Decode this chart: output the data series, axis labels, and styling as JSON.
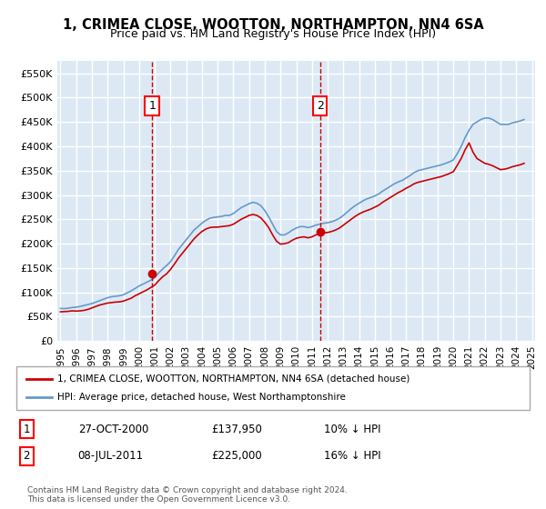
{
  "title": "1, CRIMEA CLOSE, WOOTTON, NORTHAMPTON, NN4 6SA",
  "subtitle": "Price paid vs. HM Land Registry's House Price Index (HPI)",
  "xlabel": "",
  "ylabel": "",
  "ylim": [
    0,
    575000
  ],
  "yticks": [
    0,
    50000,
    100000,
    150000,
    200000,
    250000,
    300000,
    350000,
    400000,
    450000,
    500000,
    550000
  ],
  "ytick_labels": [
    "£0",
    "£50K",
    "£100K",
    "£150K",
    "£200K",
    "£250K",
    "£300K",
    "£350K",
    "£400K",
    "£450K",
    "£500K",
    "£550K"
  ],
  "bg_color": "#dce9f5",
  "plot_bg": "#dce9f5",
  "grid_color": "#ffffff",
  "marker1_x": 2000.83,
  "marker1_y": 137950,
  "marker2_x": 2011.52,
  "marker2_y": 225000,
  "marker1_label": "1",
  "marker2_label": "2",
  "marker1_date": "27-OCT-2000",
  "marker1_price": "£137,950",
  "marker1_hpi": "10% ↓ HPI",
  "marker2_date": "08-JUL-2011",
  "marker2_price": "£225,000",
  "marker2_hpi": "16% ↓ HPI",
  "legend_label1": "1, CRIMEA CLOSE, WOOTTON, NORTHAMPTON, NN4 6SA (detached house)",
  "legend_label2": "HPI: Average price, detached house, West Northamptonshire",
  "footer": "Contains HM Land Registry data © Crown copyright and database right 2024.\nThis data is licensed under the Open Government Licence v3.0.",
  "red_line_color": "#cc0000",
  "blue_line_color": "#6699cc",
  "hpi_years": [
    1995,
    1995.25,
    1995.5,
    1995.75,
    1996,
    1996.25,
    1996.5,
    1996.75,
    1997,
    1997.25,
    1997.5,
    1997.75,
    1998,
    1998.25,
    1998.5,
    1998.75,
    1999,
    1999.25,
    1999.5,
    1999.75,
    2000,
    2000.25,
    2000.5,
    2000.75,
    2001,
    2001.25,
    2001.5,
    2001.75,
    2002,
    2002.25,
    2002.5,
    2002.75,
    2003,
    2003.25,
    2003.5,
    2003.75,
    2004,
    2004.25,
    2004.5,
    2004.75,
    2005,
    2005.25,
    2005.5,
    2005.75,
    2006,
    2006.25,
    2006.5,
    2006.75,
    2007,
    2007.25,
    2007.5,
    2007.75,
    2008,
    2008.25,
    2008.5,
    2008.75,
    2009,
    2009.25,
    2009.5,
    2009.75,
    2010,
    2010.25,
    2010.5,
    2010.75,
    2011,
    2011.25,
    2011.5,
    2011.75,
    2012,
    2012.25,
    2012.5,
    2012.75,
    2013,
    2013.25,
    2013.5,
    2013.75,
    2014,
    2014.25,
    2014.5,
    2014.75,
    2015,
    2015.25,
    2015.5,
    2015.75,
    2016,
    2016.25,
    2016.5,
    2016.75,
    2017,
    2017.25,
    2017.5,
    2017.75,
    2018,
    2018.25,
    2018.5,
    2018.75,
    2019,
    2019.25,
    2019.5,
    2019.75,
    2020,
    2020.25,
    2020.5,
    2020.75,
    2021,
    2021.25,
    2021.5,
    2021.75,
    2022,
    2022.25,
    2022.5,
    2022.75,
    2023,
    2023.25,
    2023.5,
    2023.75,
    2024,
    2024.25,
    2024.5
  ],
  "hpi_values": [
    67000,
    66500,
    67500,
    69000,
    69500,
    71000,
    73000,
    75000,
    77000,
    80000,
    83000,
    86000,
    89000,
    91000,
    92000,
    93000,
    95000,
    99000,
    103000,
    108000,
    113000,
    117000,
    121000,
    125000,
    130000,
    140000,
    148000,
    155000,
    163000,
    175000,
    188000,
    198000,
    208000,
    218000,
    228000,
    235000,
    242000,
    248000,
    252000,
    254000,
    255000,
    256000,
    258000,
    258000,
    262000,
    268000,
    274000,
    278000,
    282000,
    285000,
    283000,
    278000,
    268000,
    255000,
    240000,
    225000,
    218000,
    218000,
    222000,
    228000,
    232000,
    235000,
    235000,
    233000,
    235000,
    238000,
    240000,
    242000,
    243000,
    245000,
    248000,
    252000,
    258000,
    265000,
    272000,
    278000,
    283000,
    288000,
    292000,
    295000,
    298000,
    302000,
    308000,
    313000,
    318000,
    323000,
    327000,
    330000,
    335000,
    340000,
    346000,
    350000,
    352000,
    354000,
    356000,
    358000,
    360000,
    362000,
    365000,
    368000,
    372000,
    385000,
    400000,
    418000,
    433000,
    445000,
    450000,
    455000,
    458000,
    458000,
    455000,
    450000,
    445000,
    445000,
    445000,
    448000,
    450000,
    452000,
    455000
  ],
  "red_years": [
    1995,
    1995.25,
    1995.5,
    1995.75,
    1996,
    1996.25,
    1996.5,
    1996.75,
    1997,
    1997.25,
    1997.5,
    1997.75,
    1998,
    1998.25,
    1998.5,
    1998.75,
    1999,
    1999.25,
    1999.5,
    1999.75,
    2000,
    2000.25,
    2000.5,
    2000.75,
    2001,
    2001.25,
    2001.5,
    2001.75,
    2002,
    2002.25,
    2002.5,
    2002.75,
    2003,
    2003.25,
    2003.5,
    2003.75,
    2004,
    2004.25,
    2004.5,
    2004.75,
    2005,
    2005.25,
    2005.5,
    2005.75,
    2006,
    2006.25,
    2006.5,
    2006.75,
    2007,
    2007.25,
    2007.5,
    2007.75,
    2008,
    2008.25,
    2008.5,
    2008.75,
    2009,
    2009.25,
    2009.5,
    2009.75,
    2010,
    2010.25,
    2010.5,
    2010.75,
    2011,
    2011.25,
    2011.5,
    2011.75,
    2012,
    2012.25,
    2012.5,
    2012.75,
    2013,
    2013.25,
    2013.5,
    2013.75,
    2014,
    2014.25,
    2014.5,
    2014.75,
    2015,
    2015.25,
    2015.5,
    2015.75,
    2016,
    2016.25,
    2016.5,
    2016.75,
    2017,
    2017.25,
    2017.5,
    2017.75,
    2018,
    2018.25,
    2018.5,
    2018.75,
    2019,
    2019.25,
    2019.5,
    2019.75,
    2020,
    2020.25,
    2020.5,
    2020.75,
    2021,
    2021.25,
    2021.5,
    2021.75,
    2022,
    2022.25,
    2022.5,
    2022.75,
    2023,
    2023.25,
    2023.5,
    2023.75,
    2024,
    2024.25,
    2024.5
  ],
  "red_values": [
    60000,
    60500,
    61000,
    62000,
    61500,
    62000,
    63000,
    65000,
    68000,
    71000,
    74000,
    76000,
    78000,
    79000,
    80000,
    80500,
    82000,
    85000,
    88000,
    93000,
    97000,
    101000,
    105000,
    110000,
    115000,
    124000,
    132000,
    138000,
    147000,
    158000,
    170000,
    180000,
    190000,
    200000,
    210000,
    218000,
    225000,
    230000,
    233000,
    234000,
    234000,
    235000,
    236000,
    237000,
    240000,
    245000,
    250000,
    254000,
    258000,
    260000,
    258000,
    253000,
    244000,
    233000,
    218000,
    205000,
    199000,
    200000,
    202000,
    207000,
    211000,
    213000,
    214000,
    212000,
    214000,
    218000,
    220000,
    222000,
    223000,
    225000,
    228000,
    232000,
    238000,
    244000,
    250000,
    256000,
    261000,
    265000,
    268000,
    271000,
    275000,
    279000,
    285000,
    290000,
    295000,
    300000,
    305000,
    309000,
    314000,
    318000,
    323000,
    326000,
    328000,
    330000,
    332000,
    334000,
    336000,
    338000,
    341000,
    344000,
    348000,
    361000,
    375000,
    393000,
    407000,
    388000,
    375000,
    370000,
    365000,
    363000,
    360000,
    356000,
    352000,
    353000,
    355000,
    358000,
    360000,
    362000,
    365000
  ],
  "xtick_years": [
    1995,
    1996,
    1997,
    1998,
    1999,
    2000,
    2001,
    2002,
    2003,
    2004,
    2005,
    2006,
    2007,
    2008,
    2009,
    2010,
    2011,
    2012,
    2013,
    2014,
    2015,
    2016,
    2017,
    2018,
    2019,
    2020,
    2021,
    2022,
    2023,
    2024,
    2025
  ]
}
